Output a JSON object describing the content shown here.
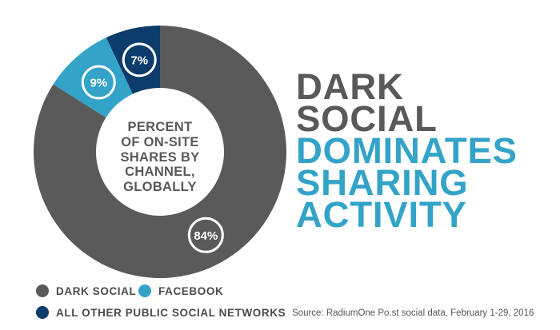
{
  "chart_data": {
    "type": "pie",
    "title": "Percent of on-site shares by channel, globally",
    "series": [
      {
        "name": "Dark Social",
        "value": 84,
        "label": "84%",
        "color": "#5a5a5a"
      },
      {
        "name": "Facebook",
        "value": 9,
        "label": "9%",
        "color": "#33a3c8"
      },
      {
        "name": "All Other Public Social Networks",
        "value": 7,
        "label": "7%",
        "color": "#0b3c6b"
      }
    ],
    "unit": "%",
    "legend_placement": "bottom-left"
  },
  "center_label": "PERCENT\nOF ON-SITE\nSHARES BY\nCHANNEL,\nGLOBALLY",
  "headline": {
    "lines": [
      {
        "text": "DARK",
        "color": "#595959"
      },
      {
        "text": "SOCIAL",
        "color": "#595959"
      },
      {
        "text": "DOMINATES",
        "color": "#33a3c8"
      },
      {
        "text": "SHARING",
        "color": "#33a3c8"
      },
      {
        "text": "ACTIVITY",
        "color": "#33a3c8"
      }
    ]
  },
  "legend": [
    {
      "label": "DARK SOCIAL",
      "color": "#5a5a5a"
    },
    {
      "label": "FACEBOOK",
      "color": "#33a3c8"
    },
    {
      "label": "ALL OTHER PUBLIC SOCIAL NETWORKS",
      "color": "#0b3c6b"
    }
  ],
  "source": "Source: RadiumOne Po.st social data, February 1-29, 2016"
}
